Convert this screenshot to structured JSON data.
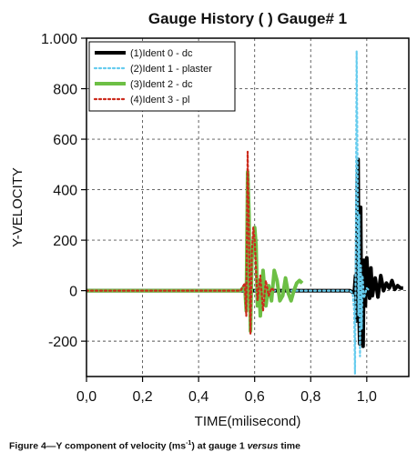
{
  "chart_data": {
    "type": "line",
    "title": "Gauge History ( ) Gauge#  1",
    "xlabel": "TIME(milisecond)",
    "ylabel": "Y-VELOCITY",
    "xlim": [
      0.0,
      1.15
    ],
    "ylim": [
      -340,
      1000
    ],
    "x_ticks": [
      {
        "value": 0.0,
        "label": "0,0"
      },
      {
        "value": 0.2,
        "label": "0,2"
      },
      {
        "value": 0.4,
        "label": "0,4"
      },
      {
        "value": 0.6,
        "label": "0,6"
      },
      {
        "value": 0.8,
        "label": "0,8"
      },
      {
        "value": 1.0,
        "label": "1,0"
      }
    ],
    "y_ticks": [
      {
        "value": -200,
        "label": "-200"
      },
      {
        "value": 0,
        "label": "0"
      },
      {
        "value": 200,
        "label": "200"
      },
      {
        "value": 400,
        "label": "400"
      },
      {
        "value": 600,
        "label": "600"
      },
      {
        "value": 800,
        "label": "800"
      },
      {
        "value": 1000,
        "label": "1.000"
      }
    ],
    "grid": true,
    "legend_position": "top-left",
    "series": [
      {
        "name": "(1)Ident 0 - dc",
        "color": "#000000",
        "style": "solid",
        "x": [
          0.0,
          0.5,
          0.8,
          0.94,
          0.955,
          0.96,
          0.963,
          0.966,
          0.969,
          0.972,
          0.975,
          0.978,
          0.981,
          0.984,
          0.987,
          0.99,
          0.995,
          1.0,
          1.005,
          1.01,
          1.015,
          1.02,
          1.03,
          1.04,
          1.05,
          1.06,
          1.07,
          1.08,
          1.09,
          1.1,
          1.11,
          1.12,
          1.13
        ],
        "y": [
          0,
          0,
          0,
          0,
          -10,
          60,
          -120,
          420,
          520,
          -60,
          -210,
          330,
          -150,
          120,
          -220,
          120,
          -60,
          130,
          20,
          -30,
          90,
          -20,
          50,
          -25,
          60,
          0,
          30,
          10,
          40,
          5,
          20,
          10,
          10
        ]
      },
      {
        "name": "(2)Ident 1 - plaster",
        "color": "#66ccee",
        "style": "dotted",
        "x": [
          0.0,
          0.5,
          0.8,
          0.94,
          0.95,
          0.955,
          0.958,
          0.961,
          0.964,
          0.967,
          0.97,
          0.973,
          0.976,
          0.979,
          0.982,
          0.985,
          0.99,
          1.0,
          1.01
        ],
        "y": [
          0,
          0,
          0,
          0,
          -10,
          -80,
          -330,
          200,
          950,
          500,
          -100,
          300,
          -260,
          100,
          -150,
          60,
          -30,
          10,
          0
        ]
      },
      {
        "name": "(3)Ident 2 - dc",
        "color": "#6dbf45",
        "style": "solid",
        "x": [
          0.0,
          0.55,
          0.565,
          0.57,
          0.575,
          0.58,
          0.585,
          0.59,
          0.595,
          0.6,
          0.605,
          0.61,
          0.615,
          0.62,
          0.63,
          0.64,
          0.65,
          0.66,
          0.67,
          0.68,
          0.69,
          0.7,
          0.71,
          0.72,
          0.73,
          0.74,
          0.75,
          0.76,
          0.77
        ],
        "y": [
          0,
          0,
          20,
          -80,
          470,
          300,
          -160,
          120,
          180,
          250,
          180,
          -60,
          40,
          -100,
          80,
          -60,
          20,
          -40,
          80,
          40,
          -40,
          -20,
          50,
          -10,
          -40,
          0,
          30,
          40,
          30
        ]
      },
      {
        "name": "(4)Ident 3 - pl",
        "color": "#cc2a1c",
        "style": "dotted",
        "x": [
          0.0,
          0.55,
          0.565,
          0.57,
          0.575,
          0.58,
          0.585,
          0.59,
          0.595,
          0.6,
          0.61,
          0.62,
          0.63,
          0.64,
          0.65,
          0.66,
          0.67
        ],
        "y": [
          0,
          0,
          30,
          -100,
          550,
          200,
          -170,
          150,
          250,
          200,
          -40,
          60,
          -80,
          40,
          -20,
          10,
          0
        ]
      }
    ]
  },
  "caption": {
    "prefix": "Figure 4—Y component of velocity (ms",
    "superscript": "-1",
    "middle": ") at gauge 1 ",
    "italic": "versus",
    "suffix": " time"
  }
}
